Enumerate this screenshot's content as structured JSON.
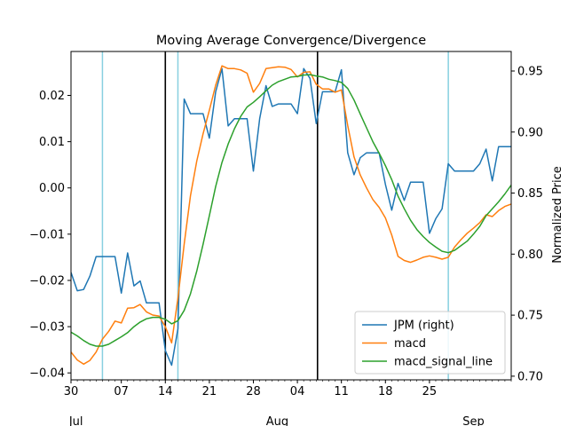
{
  "chart_data": {
    "type": "line",
    "title": "Moving Average Convergence/Divergence",
    "xlabel": "",
    "ylabel_left": "",
    "ylabel_right": "Normalized Price",
    "x_tick_labels": [
      "30",
      "07",
      "14",
      "21",
      "28",
      "04",
      "11",
      "18",
      "25"
    ],
    "x_tick_positions": [
      0,
      8,
      15,
      22,
      29,
      36,
      43,
      50,
      57
    ],
    "x_month_labels": [
      {
        "label": "Jul",
        "x": 0.8
      },
      {
        "label": "Aug",
        "x": 32.8
      },
      {
        "label": "Sep",
        "x": 64.0
      }
    ],
    "xlim": [
      0,
      70
    ],
    "y_left": {
      "lim": [
        -0.0415,
        0.0295
      ],
      "ticks": [
        -0.04,
        -0.03,
        -0.02,
        -0.01,
        0.0,
        0.01,
        0.02
      ],
      "tick_labels": [
        "−0.04",
        "−0.03",
        "−0.02",
        "−0.01",
        "0.00",
        "0.01",
        "0.02"
      ]
    },
    "y_right": {
      "lim": [
        0.697,
        0.966
      ],
      "ticks": [
        0.7,
        0.75,
        0.8,
        0.85,
        0.9,
        0.95
      ],
      "tick_labels": [
        "0.70",
        "0.75",
        "0.80",
        "0.85",
        "0.90",
        "0.95"
      ]
    },
    "vlines_black": [
      15,
      39.2
    ],
    "vlines_cyan": [
      5,
      17,
      60
    ],
    "legend_position": "lower right",
    "grid": false,
    "series": [
      {
        "name": "JPM (right)",
        "axis": "right",
        "color": "#1f77b4",
        "x": [
          0,
          1,
          2,
          3,
          4,
          5,
          6,
          7,
          8,
          9,
          10,
          11,
          12,
          13,
          14,
          15,
          16,
          17,
          18,
          19,
          20,
          21,
          22,
          23,
          24,
          25,
          26,
          27,
          28,
          29,
          30,
          31,
          32,
          33,
          34,
          35,
          36,
          37,
          38,
          39,
          40,
          41,
          42,
          43,
          44,
          45,
          46,
          47,
          48,
          49,
          50,
          51,
          52,
          53,
          54,
          55,
          56,
          57,
          58,
          59,
          60,
          61,
          62,
          63,
          64,
          65,
          66,
          67,
          68,
          69,
          70
        ],
        "y": [
          0.785,
          0.77,
          0.771,
          0.782,
          0.798,
          0.798,
          0.798,
          0.798,
          0.768,
          0.801,
          0.774,
          0.778,
          0.76,
          0.76,
          0.76,
          0.721,
          0.709,
          0.739,
          0.927,
          0.915,
          0.915,
          0.915,
          0.895,
          0.933,
          0.952,
          0.905,
          0.911,
          0.911,
          0.911,
          0.868,
          0.911,
          0.938,
          0.921,
          0.923,
          0.923,
          0.923,
          0.915,
          0.952,
          0.944,
          0.907,
          0.933,
          0.933,
          0.933,
          0.951,
          0.883,
          0.865,
          0.879,
          0.883,
          0.883,
          0.883,
          0.857,
          0.836,
          0.858,
          0.844,
          0.859,
          0.859,
          0.859,
          0.817,
          0.829,
          0.837,
          0.874,
          0.868,
          0.868,
          0.868,
          0.868,
          0.874,
          0.886,
          0.86,
          0.888,
          0.888,
          0.888
        ]
      },
      {
        "name": "macd",
        "axis": "left",
        "color": "#ff7f0e",
        "x": [
          0,
          1,
          2,
          3,
          4,
          5,
          6,
          7,
          8,
          9,
          10,
          11,
          12,
          13,
          14,
          15,
          16,
          17,
          18,
          19,
          20,
          21,
          22,
          23,
          24,
          25,
          26,
          27,
          28,
          29,
          30,
          31,
          32,
          33,
          34,
          35,
          36,
          37,
          38,
          39,
          40,
          41,
          42,
          43,
          44,
          45,
          46,
          47,
          48,
          49,
          50,
          51,
          52,
          53,
          54,
          55,
          56,
          57,
          58,
          59,
          60,
          61,
          62,
          63,
          64,
          65,
          66,
          67,
          68,
          69,
          70
        ],
        "y": [
          -0.0355,
          -0.0372,
          -0.0381,
          -0.0373,
          -0.0355,
          -0.0327,
          -0.031,
          -0.0288,
          -0.0292,
          -0.026,
          -0.0259,
          -0.0252,
          -0.0268,
          -0.0275,
          -0.0277,
          -0.03,
          -0.0335,
          -0.0238,
          -0.0122,
          -0.0017,
          0.0058,
          0.0117,
          0.0168,
          0.0222,
          0.0264,
          0.0258,
          0.0258,
          0.0255,
          0.0248,
          0.0207,
          0.0226,
          0.0258,
          0.026,
          0.0262,
          0.0261,
          0.0256,
          0.024,
          0.025,
          0.0251,
          0.0224,
          0.0214,
          0.0214,
          0.0207,
          0.0212,
          0.0135,
          0.0067,
          0.0028,
          0.0,
          -0.0025,
          -0.0042,
          -0.0065,
          -0.0102,
          -0.0148,
          -0.0157,
          -0.0161,
          -0.0156,
          -0.015,
          -0.0147,
          -0.015,
          -0.0154,
          -0.015,
          -0.0128,
          -0.0112,
          -0.0098,
          -0.0087,
          -0.0075,
          -0.0058,
          -0.0062,
          -0.0049,
          -0.004,
          -0.0035
        ]
      },
      {
        "name": "macd_signal_line",
        "axis": "left",
        "color": "#2ca02c",
        "x": [
          0,
          1,
          2,
          3,
          4,
          5,
          6,
          7,
          8,
          9,
          10,
          11,
          12,
          13,
          14,
          15,
          16,
          17,
          18,
          19,
          20,
          21,
          22,
          23,
          24,
          25,
          26,
          27,
          28,
          29,
          30,
          31,
          32,
          33,
          34,
          35,
          36,
          37,
          38,
          39,
          40,
          41,
          42,
          43,
          44,
          45,
          46,
          47,
          48,
          49,
          50,
          51,
          52,
          53,
          54,
          55,
          56,
          57,
          58,
          59,
          60,
          61,
          62,
          63,
          64,
          65,
          66,
          67,
          68,
          69,
          70
        ],
        "y": [
          -0.0312,
          -0.032,
          -0.033,
          -0.0338,
          -0.0342,
          -0.0342,
          -0.0338,
          -0.033,
          -0.0322,
          -0.0313,
          -0.03,
          -0.029,
          -0.0283,
          -0.028,
          -0.028,
          -0.0284,
          -0.0294,
          -0.0287,
          -0.0265,
          -0.0229,
          -0.018,
          -0.0122,
          -0.006,
          0.0003,
          0.0055,
          0.0095,
          0.0128,
          0.0155,
          0.0175,
          0.0185,
          0.0197,
          0.021,
          0.0222,
          0.023,
          0.0235,
          0.024,
          0.0241,
          0.0244,
          0.0245,
          0.0242,
          0.024,
          0.0235,
          0.0232,
          0.0228,
          0.0215,
          0.019,
          0.016,
          0.013,
          0.01,
          0.0075,
          0.0048,
          0.0018,
          -0.0018,
          -0.0045,
          -0.007,
          -0.009,
          -0.0105,
          -0.0118,
          -0.0128,
          -0.0137,
          -0.014,
          -0.0135,
          -0.0125,
          -0.0115,
          -0.01,
          -0.0083,
          -0.006,
          -0.0045,
          -0.003,
          -0.0013,
          0.0006
        ]
      }
    ]
  }
}
